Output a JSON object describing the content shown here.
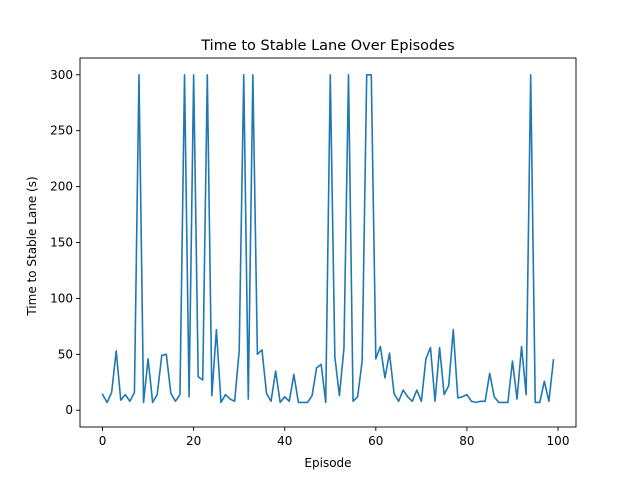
{
  "chart_data": {
    "type": "line",
    "title": "Time to Stable Lane Over Episodes",
    "xlabel": "Episode",
    "ylabel": "Time to Stable Lane (s)",
    "xlim": [
      -4.95,
      103.95
    ],
    "ylim": [
      -15,
      315
    ],
    "xticks": [
      0,
      20,
      40,
      60,
      80,
      100
    ],
    "yticks": [
      0,
      50,
      100,
      150,
      200,
      250,
      300
    ],
    "grid": false,
    "legend": "none",
    "series": [
      {
        "color": "#1f77b4",
        "x": [
          0,
          1,
          2,
          3,
          4,
          5,
          6,
          7,
          8,
          9,
          10,
          11,
          12,
          13,
          14,
          15,
          16,
          17,
          18,
          19,
          20,
          21,
          22,
          23,
          24,
          25,
          26,
          27,
          28,
          29,
          30,
          31,
          32,
          33,
          34,
          35,
          36,
          37,
          38,
          39,
          40,
          41,
          42,
          43,
          44,
          45,
          46,
          47,
          48,
          49,
          50,
          51,
          52,
          53,
          54,
          55,
          56,
          57,
          58,
          59,
          60,
          61,
          62,
          63,
          64,
          65,
          66,
          67,
          68,
          69,
          70,
          71,
          72,
          73,
          74,
          75,
          76,
          77,
          78,
          79,
          80,
          81,
          82,
          83,
          84,
          85,
          86,
          87,
          88,
          89,
          90,
          91,
          92,
          93,
          94,
          95,
          96,
          97,
          98,
          99
        ],
        "values": [
          14,
          7,
          16,
          53,
          9,
          14,
          8,
          16,
          300,
          7,
          46,
          7,
          14,
          49,
          50,
          15,
          8,
          14,
          300,
          12,
          300,
          30,
          27,
          300,
          13,
          72,
          7,
          14,
          10,
          8,
          53,
          300,
          10,
          300,
          50,
          54,
          15,
          8,
          35,
          7,
          12,
          8,
          32,
          7,
          7,
          7,
          13,
          38,
          41,
          7,
          300,
          48,
          13,
          55,
          300,
          8,
          12,
          44,
          300,
          300,
          46,
          57,
          29,
          51,
          15,
          8,
          18,
          12,
          8,
          18,
          8,
          46,
          56,
          8,
          56,
          14,
          22,
          72,
          11,
          12,
          14,
          8,
          7,
          8,
          8,
          33,
          12,
          7,
          7,
          7,
          44,
          10,
          57,
          14,
          300,
          7,
          7,
          26,
          8,
          45
        ]
      }
    ]
  }
}
